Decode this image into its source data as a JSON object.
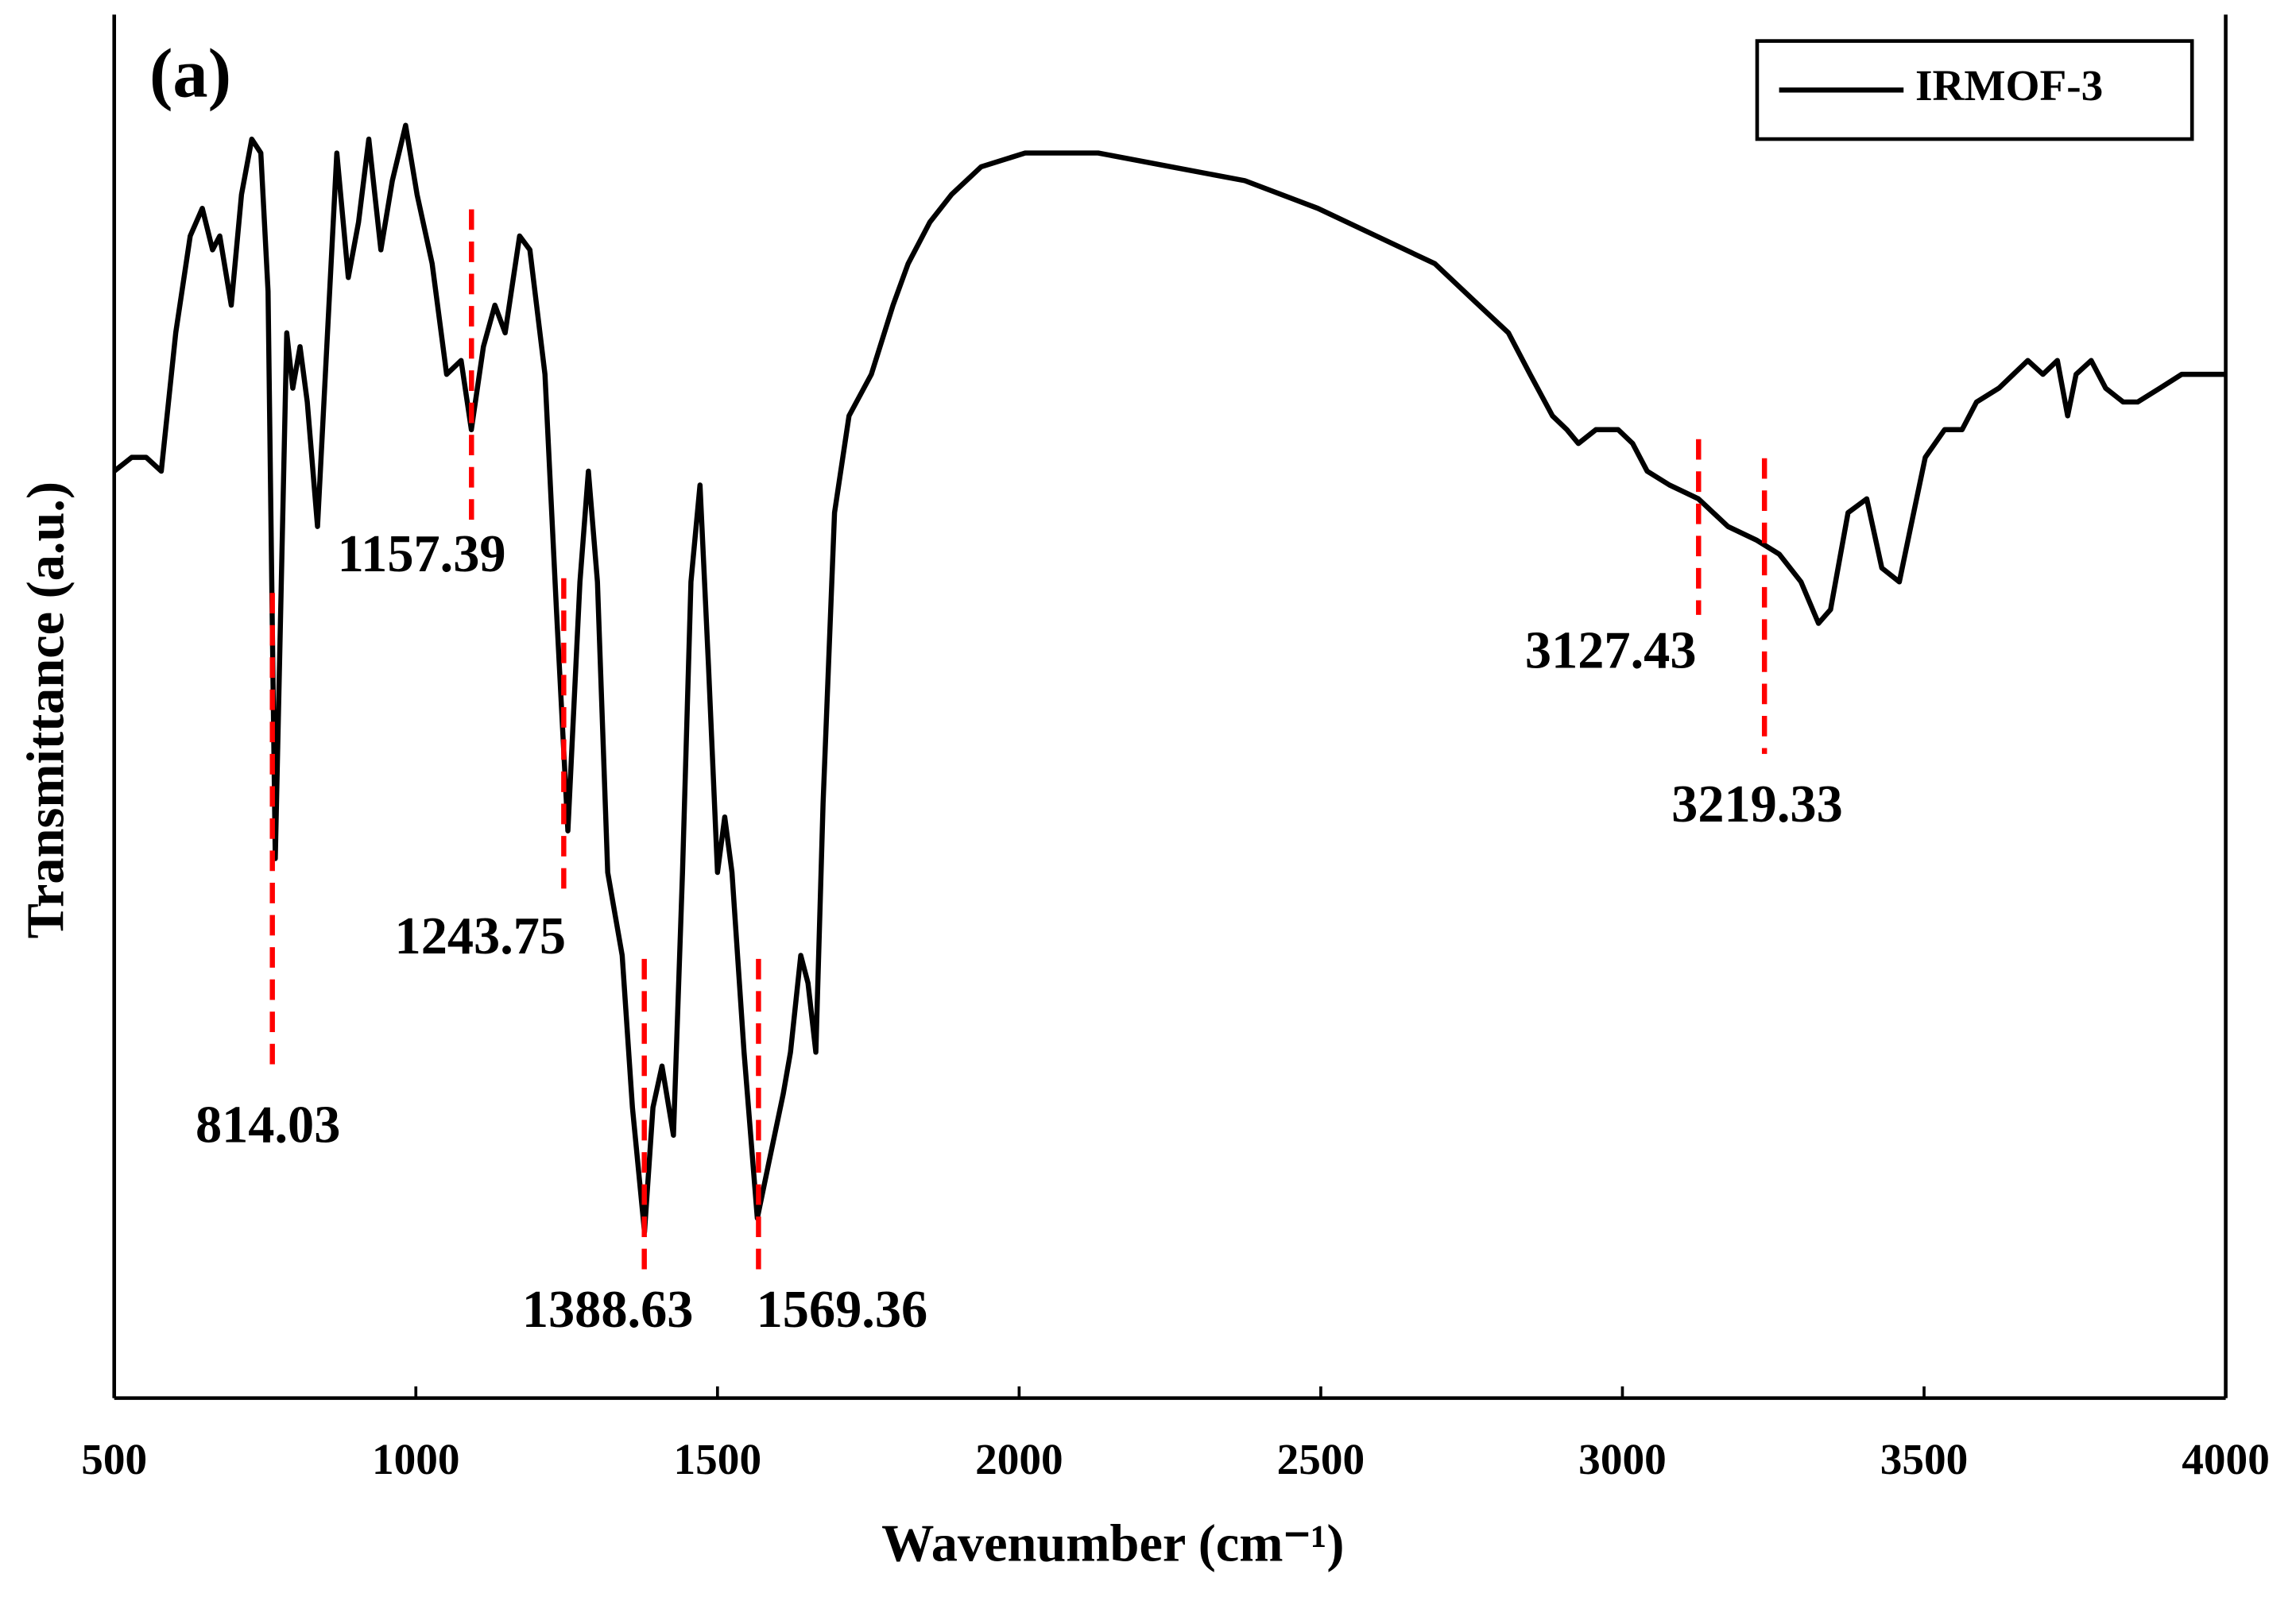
{
  "chart_data": {
    "type": "line",
    "panel_label": "(a)",
    "xlabel": "Wavenumber (cm⁻¹)",
    "ylabel": "Transmittance (a.u.)",
    "xlim": [
      500,
      4000
    ],
    "xticks": [
      500,
      1000,
      1500,
      2000,
      2500,
      3000,
      3500,
      4000
    ],
    "ylim": [
      0,
      100
    ],
    "legend": "upper right",
    "annotations": [
      "814.03",
      "1157.39",
      "1243.75",
      "1388.63",
      "1569.36",
      "3127.43",
      "3219.33"
    ],
    "annotation_color": "#ff0000",
    "x": [
      500,
      529,
      553,
      578,
      602,
      626,
      646,
      663,
      675,
      694,
      711,
      728,
      743,
      755,
      767,
      777,
      786,
      796,
      808,
      820,
      837,
      850,
      869,
      888,
      905,
      922,
      942,
      961,
      983,
      1002,
      1027,
      1051,
      1075,
      1092,
      1112,
      1131,
      1148,
      1172,
      1189,
      1214,
      1233,
      1252,
      1272,
      1286,
      1301,
      1318,
      1342,
      1359,
      1379,
      1393,
      1408,
      1427,
      1442,
      1456,
      1471,
      1485,
      1500,
      1512,
      1524,
      1544,
      1566,
      1585,
      1609,
      1621,
      1638,
      1650,
      1663,
      1675,
      1694,
      1718,
      1755,
      1791,
      1816,
      1852,
      1888,
      1937,
      2010,
      2131,
      2252,
      2374,
      2495,
      2592,
      2689,
      2762,
      2811,
      2847,
      2884,
      2908,
      2927,
      2956,
      2993,
      3017,
      3041,
      3078,
      3126,
      3175,
      3223,
      3260,
      3296,
      3325,
      3345,
      3374,
      3405,
      3430,
      3459,
      3478,
      3502,
      3534,
      3563,
      3587,
      3624,
      3648,
      3672,
      3697,
      3721,
      3738,
      3752,
      3777,
      3801,
      3830,
      3854,
      3891,
      3927,
      3964,
      4000
    ],
    "series": [
      {
        "name": "IRMOF-3",
        "color": "#000000",
        "values": [
          67,
          68,
          68,
          67,
          77,
          84,
          86,
          83,
          84,
          79,
          87,
          91,
          90,
          80,
          39,
          59,
          77,
          73,
          76,
          72,
          63,
          74,
          90,
          81,
          85,
          91,
          83,
          88,
          92,
          87,
          82,
          74,
          75,
          70,
          76,
          79,
          77,
          84,
          83,
          74,
          57,
          41,
          59,
          67,
          59,
          38,
          32,
          21,
          12,
          21,
          24,
          19,
          38,
          59,
          66,
          53,
          38,
          42,
          38,
          25,
          13,
          17,
          22,
          25,
          32,
          30,
          25,
          43,
          64,
          71,
          74,
          79,
          82,
          85,
          87,
          89,
          90,
          90,
          89,
          88,
          86,
          84,
          82,
          79,
          77,
          74,
          71,
          70,
          69,
          70,
          70,
          69,
          67,
          66,
          65,
          63,
          62,
          61,
          59,
          56,
          57,
          64,
          65,
          60,
          59,
          63,
          68,
          70,
          70,
          72,
          73,
          74,
          75,
          74,
          75,
          71,
          74,
          75,
          73,
          72,
          72,
          73,
          74,
          74,
          74
        ]
      }
    ]
  }
}
